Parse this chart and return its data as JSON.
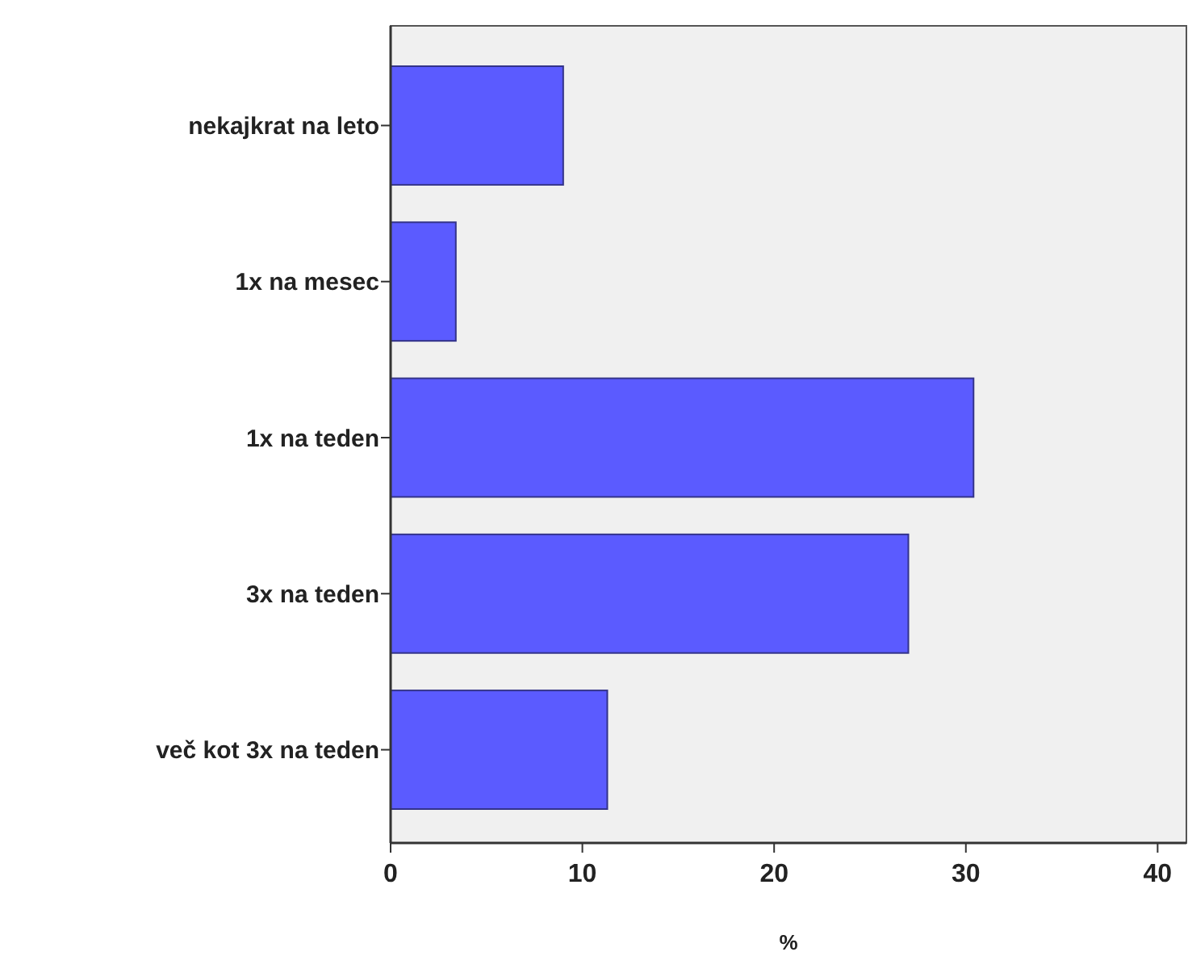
{
  "chart_data": {
    "type": "bar",
    "orientation": "horizontal",
    "xlabel": "%",
    "categories": [
      "nekajkrat na leto",
      "1x na mesec",
      "1x na teden",
      "3x na teden",
      "več kot 3x na teden"
    ],
    "values": [
      9.0,
      3.4,
      30.4,
      27.0,
      11.3
    ],
    "color": "#5b5bff",
    "xlim": [
      0,
      41.5
    ],
    "xticks": [
      0,
      10,
      20,
      30,
      40
    ],
    "grid": false
  }
}
